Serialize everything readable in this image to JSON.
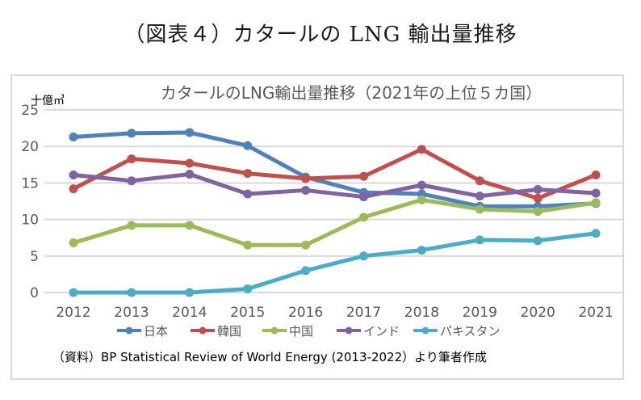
{
  "page": {
    "title": "（図表４）カタールの LNG 輸出量推移"
  },
  "chart_data": {
    "type": "line",
    "title": "カタールのLNG輸出量推移（2021年の上位５カ国）",
    "ylabel": "十億㎥",
    "xlabel": "",
    "categories": [
      "2012",
      "2013",
      "2014",
      "2015",
      "2016",
      "2017",
      "2018",
      "2019",
      "2020",
      "2021"
    ],
    "ylim": [
      0,
      25
    ],
    "yticks": [
      0,
      5,
      10,
      15,
      20,
      25
    ],
    "grid": true,
    "legend_position": "bottom",
    "series": [
      {
        "name": "日本",
        "color": "#4f81bd",
        "values": [
          21.3,
          21.8,
          21.9,
          20.1,
          15.8,
          13.7,
          13.5,
          11.8,
          11.8,
          12.2
        ]
      },
      {
        "name": "韓国",
        "color": "#c0504d",
        "values": [
          14.2,
          18.3,
          17.7,
          16.3,
          15.6,
          15.9,
          19.6,
          15.3,
          12.9,
          16.1
        ]
      },
      {
        "name": "中国",
        "color": "#9bbb59",
        "values": [
          6.8,
          9.2,
          9.2,
          6.5,
          6.5,
          10.3,
          12.7,
          11.4,
          11.1,
          12.3
        ]
      },
      {
        "name": "インド",
        "color": "#8064a2",
        "values": [
          16.1,
          15.3,
          16.2,
          13.5,
          14.0,
          13.1,
          14.7,
          13.2,
          14.1,
          13.6
        ]
      },
      {
        "name": "パキスタン",
        "color": "#4bacc6",
        "values": [
          0.0,
          0.0,
          0.0,
          0.5,
          3.0,
          5.0,
          5.8,
          7.2,
          7.1,
          8.1
        ]
      }
    ],
    "source": "（資料）BP Statistical Review of World Energy (2013-2022）より筆者作成"
  }
}
